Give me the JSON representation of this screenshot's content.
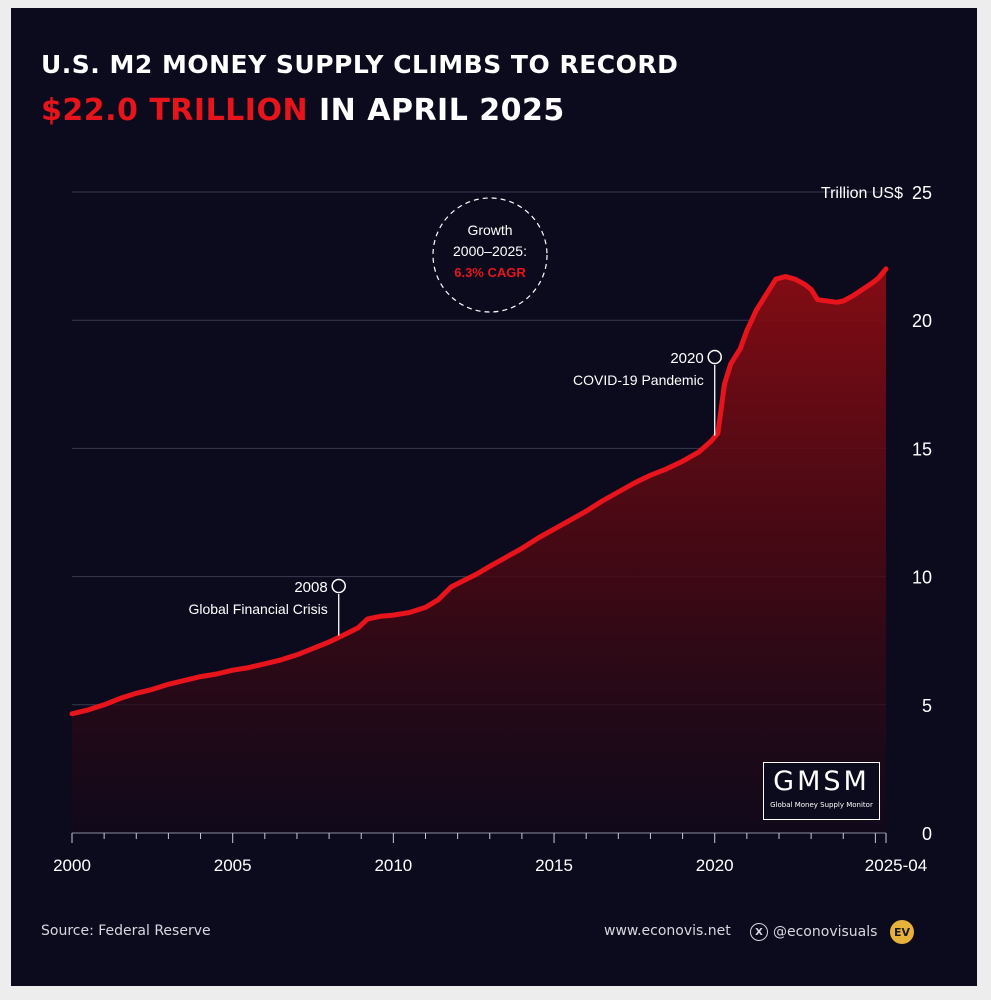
{
  "title": {
    "line1": "U.S. M2 MONEY SUPPLY CLIMBS TO RECORD",
    "line2_highlight": "$22.0 TRILLION",
    "line2_rest": " IN APRIL 2025"
  },
  "growth_badge": {
    "line1": "Growth",
    "line2": "2000–2025:",
    "line3": "6.3% CAGR"
  },
  "annotations": [
    {
      "year": "2008",
      "label": "Global Financial Crisis",
      "x": 2008.3,
      "y": 7.7
    },
    {
      "year": "2020",
      "label": "COVID-19 Pandemic",
      "x": 2020.0,
      "y": 15.5
    }
  ],
  "logo": {
    "big": "GMSM",
    "small": "Global Money Supply Monitor"
  },
  "footer": {
    "source": "Source: Federal Reserve",
    "website": "www.econovis.net",
    "social": "@econovisuals",
    "brand_mark": "EV"
  },
  "colors": {
    "background": "#0b0b1d",
    "line": "#e8141b",
    "accent_red": "#e8141b",
    "text": "#ffffff",
    "grid": "#3a3a4e"
  },
  "chart_data": {
    "type": "area",
    "title": "U.S. M2 MONEY SUPPLY CLIMBS TO RECORD $22.0 TRILLION IN APRIL 2025",
    "ylabel": "Trillion US$",
    "xlabel": "",
    "xlim": [
      2000,
      2025.33
    ],
    "ylim": [
      0,
      25
    ],
    "x_ticks": [
      {
        "value": 2000,
        "label": "2000"
      },
      {
        "value": 2005,
        "label": "2005"
      },
      {
        "value": 2010,
        "label": "2010"
      },
      {
        "value": 2015,
        "label": "2015"
      },
      {
        "value": 2020,
        "label": "2020"
      },
      {
        "value": 2025.33,
        "label": "2025-04"
      }
    ],
    "y_ticks": [
      0,
      5,
      10,
      15,
      20,
      25
    ],
    "grid": true,
    "series": [
      {
        "x": [
          2000.0,
          2000.5,
          2001.0,
          2001.5,
          2002.0,
          2002.5,
          2003.0,
          2003.5,
          2004.0,
          2004.5,
          2005.0,
          2005.5,
          2006.0,
          2006.5,
          2007.0,
          2007.5,
          2008.0,
          2008.5,
          2008.9,
          2009.2,
          2009.6,
          2010.0,
          2010.5,
          2011.0,
          2011.4,
          2011.8,
          2012.2,
          2012.6,
          2013.0,
          2013.5,
          2014.0,
          2014.5,
          2015.0,
          2015.5,
          2016.0,
          2016.5,
          2017.0,
          2017.5,
          2018.0,
          2018.5,
          2019.0,
          2019.5,
          2019.9,
          2020.1,
          2020.3,
          2020.5,
          2020.8,
          2021.0,
          2021.3,
          2021.6,
          2021.9,
          2022.2,
          2022.5,
          2022.8,
          2023.0,
          2023.2,
          2023.5,
          2023.8,
          2024.0,
          2024.3,
          2024.6,
          2024.9,
          2025.1,
          2025.33
        ],
        "y": [
          4.65,
          4.8,
          5.0,
          5.25,
          5.45,
          5.6,
          5.8,
          5.95,
          6.1,
          6.2,
          6.35,
          6.45,
          6.6,
          6.75,
          6.95,
          7.2,
          7.45,
          7.75,
          8.0,
          8.35,
          8.45,
          8.5,
          8.6,
          8.8,
          9.1,
          9.6,
          9.85,
          10.1,
          10.4,
          10.75,
          11.1,
          11.5,
          11.85,
          12.2,
          12.55,
          12.95,
          13.3,
          13.65,
          13.95,
          14.2,
          14.5,
          14.85,
          15.3,
          15.6,
          17.5,
          18.3,
          18.9,
          19.6,
          20.4,
          21.0,
          21.6,
          21.7,
          21.6,
          21.4,
          21.2,
          20.8,
          20.75,
          20.7,
          20.75,
          20.95,
          21.2,
          21.45,
          21.65,
          22.0
        ]
      }
    ]
  }
}
